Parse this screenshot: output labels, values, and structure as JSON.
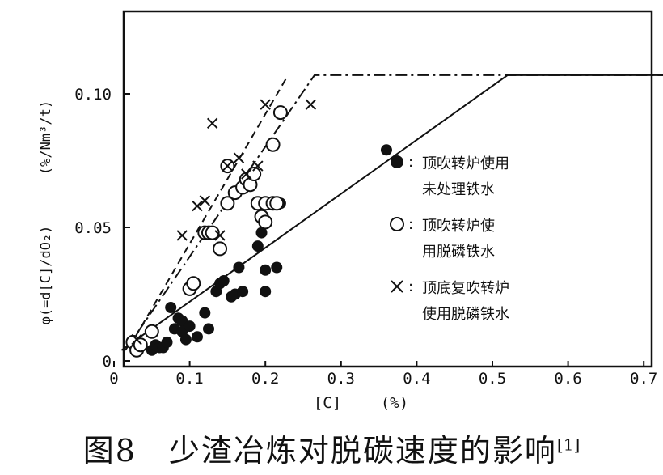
{
  "chart_data": {
    "type": "scatter",
    "xlim": [
      0,
      0.75
    ],
    "ylim": [
      0,
      0.12
    ],
    "x_ticks": [
      {
        "v": 0,
        "label": "0"
      },
      {
        "v": 0.1,
        "label": "0.1"
      },
      {
        "v": 0.2,
        "label": "0.2"
      },
      {
        "v": 0.3,
        "label": "0.3"
      },
      {
        "v": 0.4,
        "label": "0.4"
      },
      {
        "v": 0.5,
        "label": "0.5"
      },
      {
        "v": 0.6,
        "label": "0.6"
      },
      {
        "v": 0.7,
        "label": "0.7"
      }
    ],
    "y_ticks": [
      {
        "v": 0,
        "label": "0"
      },
      {
        "v": 0.05,
        "label": "0.05"
      },
      {
        "v": 0.1,
        "label": "0.10"
      }
    ],
    "xlabel": "[C]",
    "xunit": "(%)",
    "ylabel": "φ(=d[C]/dO₂)",
    "yunit": "(%/Nm³/t)",
    "series": [
      {
        "name": "顶吹转炉使用未处理铁水",
        "legend_lines": [
          "顶吹转炉使用",
          "未处理铁水"
        ],
        "marker": "filled-circle",
        "points": [
          [
            0.05,
            0.004
          ],
          [
            0.055,
            0.006
          ],
          [
            0.06,
            0.005
          ],
          [
            0.065,
            0.005
          ],
          [
            0.07,
            0.007
          ],
          [
            0.075,
            0.02
          ],
          [
            0.08,
            0.012
          ],
          [
            0.085,
            0.016
          ],
          [
            0.09,
            0.015
          ],
          [
            0.09,
            0.011
          ],
          [
            0.095,
            0.008
          ],
          [
            0.1,
            0.013
          ],
          [
            0.11,
            0.009
          ],
          [
            0.12,
            0.018
          ],
          [
            0.125,
            0.012
          ],
          [
            0.135,
            0.026
          ],
          [
            0.14,
            0.029
          ],
          [
            0.145,
            0.03
          ],
          [
            0.155,
            0.024
          ],
          [
            0.16,
            0.025
          ],
          [
            0.165,
            0.035
          ],
          [
            0.17,
            0.026
          ],
          [
            0.19,
            0.043
          ],
          [
            0.195,
            0.048
          ],
          [
            0.2,
            0.034
          ],
          [
            0.2,
            0.026
          ],
          [
            0.215,
            0.035
          ],
          [
            0.22,
            0.059
          ],
          [
            0.36,
            0.079
          ]
        ]
      },
      {
        "name": "顶吹转炉使用脱磷铁水",
        "legend_lines": [
          "顶吹转炉使",
          "用脱磷铁水"
        ],
        "marker": "open-circle",
        "points": [
          [
            0.025,
            0.007
          ],
          [
            0.03,
            0.004
          ],
          [
            0.035,
            0.006
          ],
          [
            0.05,
            0.011
          ],
          [
            0.1,
            0.027
          ],
          [
            0.105,
            0.029
          ],
          [
            0.12,
            0.048
          ],
          [
            0.125,
            0.048
          ],
          [
            0.13,
            0.048
          ],
          [
            0.14,
            0.042
          ],
          [
            0.15,
            0.073
          ],
          [
            0.15,
            0.059
          ],
          [
            0.16,
            0.063
          ],
          [
            0.17,
            0.065
          ],
          [
            0.175,
            0.068
          ],
          [
            0.18,
            0.066
          ],
          [
            0.185,
            0.07
          ],
          [
            0.19,
            0.059
          ],
          [
            0.195,
            0.054
          ],
          [
            0.2,
            0.059
          ],
          [
            0.2,
            0.052
          ],
          [
            0.21,
            0.081
          ],
          [
            0.21,
            0.059
          ],
          [
            0.215,
            0.059
          ],
          [
            0.22,
            0.093
          ]
        ]
      },
      {
        "name": "顶底复吹转炉使用脱磷铁水",
        "legend_lines": [
          "顶底复吹转炉",
          "使用脱磷铁水"
        ],
        "marker": "cross",
        "points": [
          [
            0.03,
            0.008
          ],
          [
            0.09,
            0.047
          ],
          [
            0.11,
            0.058
          ],
          [
            0.12,
            0.06
          ],
          [
            0.13,
            0.089
          ],
          [
            0.14,
            0.047
          ],
          [
            0.15,
            0.073
          ],
          [
            0.165,
            0.076
          ],
          [
            0.175,
            0.07
          ],
          [
            0.19,
            0.073
          ],
          [
            0.2,
            0.096
          ],
          [
            0.26,
            0.096
          ]
        ]
      }
    ],
    "lines": [
      {
        "style": "solid",
        "points": [
          [
            0.01,
            0.004
          ],
          [
            0.52,
            0.107
          ],
          [
            0.75,
            0.107
          ]
        ]
      },
      {
        "style": "dashed",
        "points": [
          [
            0.02,
            0.005
          ],
          [
            0.23,
            0.107
          ]
        ]
      },
      {
        "style": "dashdot",
        "points": [
          [
            0.015,
            0.004
          ],
          [
            0.265,
            0.107
          ],
          [
            0.75,
            0.107
          ]
        ]
      }
    ]
  },
  "caption": {
    "text": "图8　少渣冶炼对脱碳速度的影响",
    "ref": "[1]"
  }
}
